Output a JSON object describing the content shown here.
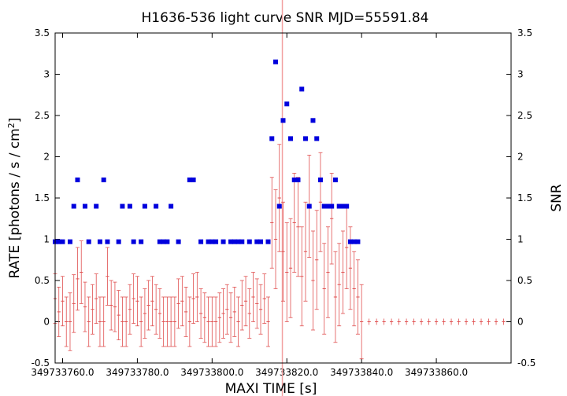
{
  "chart_data": {
    "type": "scatter",
    "title": "H1636-536 light curve  SNR MJD=55591.84",
    "xlabel": "MAXI TIME [s]",
    "ylabel": "RATE [photons / s / cm",
    "ylabel_sup": "2",
    "ylabel_close": "]",
    "y2label": "SNR",
    "xlim": [
      349733758.0,
      349733880.0
    ],
    "ylim": [
      -0.5,
      3.5
    ],
    "y2lim": [
      -0.5,
      3.5
    ],
    "x_ticks": [
      349733760.0,
      349733780.0,
      349733800.0,
      349733820.0,
      349733840.0,
      349733860.0
    ],
    "x_tick_labels": [
      "349733760.0",
      "349733780.0",
      "349733800.0",
      "349733820.0",
      "349733840.0",
      "349733860.0"
    ],
    "y_ticks": [
      -0.5,
      0,
      0.5,
      1,
      1.5,
      2,
      2.5,
      3,
      3.5
    ],
    "y_tick_labels": [
      "-0.5",
      "0",
      "0.5",
      "1",
      "1.5",
      "2",
      "2.5",
      "3",
      "3.5"
    ],
    "vertical_marker_x": 349733818.8,
    "colors": {
      "rate": "#e05050",
      "snr": "#0000dd",
      "marker": "#f2a0a0"
    },
    "rate": {
      "x": [
        349733758.0,
        349733759.0,
        349733760.0,
        349733761.0,
        349733762.0,
        349733763.0,
        349733764.0,
        349733765.0,
        349733766.0,
        349733767.0,
        349733768.0,
        349733769.0,
        349733770.0,
        349733771.0,
        349733772.0,
        349733773.0,
        349733774.0,
        349733775.0,
        349733776.0,
        349733777.0,
        349733778.0,
        349733779.0,
        349733780.0,
        349733781.0,
        349733782.0,
        349733783.0,
        349733784.0,
        349733785.0,
        349733786.0,
        349733787.0,
        349733788.0,
        349733789.0,
        349733790.0,
        349733791.0,
        349733792.0,
        349733793.0,
        349733794.0,
        349733795.0,
        349733796.0,
        349733797.0,
        349733798.0,
        349733799.0,
        349733800.0,
        349733801.0,
        349733802.0,
        349733803.0,
        349733804.0,
        349733805.0,
        349733806.0,
        349733807.0,
        349733808.0,
        349733809.0,
        349733810.0,
        349733811.0,
        349733812.0,
        349733813.0,
        349733814.0,
        349733815.0,
        349733816.0,
        349733817.0,
        349733818.0,
        349733819.0,
        349733820.0,
        349733821.0,
        349733822.0,
        349733823.0,
        349733824.0,
        349733825.0,
        349733826.0,
        349733827.0,
        349733828.0,
        349733829.0,
        349733830.0,
        349733831.0,
        349733832.0,
        349733833.0,
        349733834.0,
        349733835.0,
        349733836.0,
        349733837.0,
        349733838.0,
        349733839.0,
        349733840.0,
        349733842.0,
        349733844.0,
        349733846.0,
        349733848.0,
        349733850.0,
        349733852.0,
        349733854.0,
        349733856.0,
        349733858.0,
        349733860.0,
        349733862.0,
        349733864.0,
        349733866.0,
        349733868.0,
        349733870.0,
        349733872.0,
        349733874.0,
        349733876.0,
        349733878.0
      ],
      "y": [
        0.28,
        0.12,
        0.25,
        0.0,
        0.0,
        0.22,
        0.52,
        0.6,
        0.18,
        0.0,
        0.15,
        0.28,
        0.0,
        0.0,
        0.55,
        0.2,
        0.18,
        0.08,
        0.0,
        0.0,
        0.15,
        0.28,
        0.25,
        0.0,
        0.1,
        0.2,
        0.25,
        0.15,
        0.1,
        0.0,
        0.0,
        0.0,
        0.0,
        0.22,
        0.25,
        0.12,
        0.0,
        0.28,
        0.3,
        0.1,
        0.05,
        0.0,
        0.0,
        0.0,
        0.05,
        0.1,
        0.15,
        0.05,
        0.12,
        0.0,
        0.2,
        0.25,
        0.1,
        0.3,
        0.22,
        0.15,
        0.28,
        0.0,
        1.2,
        1.0,
        1.5,
        0.85,
        0.6,
        0.65,
        1.2,
        1.15,
        0.55,
        0.85,
        1.4,
        0.5,
        0.75,
        1.45,
        0.4,
        0.6,
        1.25,
        0.3,
        0.45,
        0.6,
        0.9,
        0.65,
        0.4,
        0.3,
        0.0,
        0.0,
        0.0,
        0.0,
        0.0,
        0.0,
        0.0,
        0.0,
        0.0,
        0.0,
        0.0,
        0.0,
        0.0,
        0.0,
        0.0,
        0.0,
        0.0,
        0.0,
        0.0,
        0.0
      ],
      "err": [
        0.3,
        0.3,
        0.3,
        0.3,
        0.35,
        0.35,
        0.38,
        0.38,
        0.3,
        0.3,
        0.3,
        0.3,
        0.3,
        0.3,
        0.35,
        0.3,
        0.3,
        0.3,
        0.3,
        0.3,
        0.3,
        0.3,
        0.3,
        0.3,
        0.3,
        0.3,
        0.3,
        0.3,
        0.3,
        0.3,
        0.3,
        0.3,
        0.3,
        0.3,
        0.3,
        0.3,
        0.3,
        0.3,
        0.3,
        0.3,
        0.3,
        0.3,
        0.3,
        0.3,
        0.3,
        0.3,
        0.3,
        0.3,
        0.3,
        0.3,
        0.3,
        0.3,
        0.3,
        0.3,
        0.3,
        0.3,
        0.3,
        0.3,
        0.55,
        0.6,
        0.65,
        0.6,
        0.6,
        0.6,
        0.6,
        0.6,
        0.6,
        0.6,
        0.62,
        0.6,
        0.6,
        0.6,
        0.55,
        0.55,
        0.55,
        0.55,
        0.5,
        0.5,
        0.5,
        0.5,
        0.45,
        0.45,
        0.45,
        0.0,
        0.0,
        0.0,
        0.0,
        0.0,
        0.0,
        0.0,
        0.0,
        0.0,
        0.0,
        0.0,
        0.0,
        0.0,
        0.0,
        0.0,
        0.0,
        0.0,
        0.0,
        0.0
      ]
    },
    "snr": {
      "x": [
        349733758.0,
        349733759.0,
        349733760.0,
        349733762.0,
        349733763.0,
        349733764.0,
        349733766.0,
        349733767.0,
        349733769.0,
        349733770.0,
        349733771.0,
        349733772.0,
        349733775.0,
        349733776.0,
        349733778.0,
        349733779.0,
        349733781.0,
        349733782.0,
        349733785.0,
        349733786.0,
        349733787.0,
        349733788.0,
        349733789.0,
        349733791.0,
        349733794.0,
        349733795.0,
        349733797.0,
        349733799.0,
        349733800.0,
        349733801.0,
        349733803.0,
        349733805.0,
        349733806.0,
        349733807.0,
        349733808.0,
        349733810.0,
        349733812.0,
        349733813.0,
        349733815.0,
        349733816.0,
        349733817.0,
        349733818.0,
        349733819.0,
        349733820.0,
        349733821.0,
        349733822.0,
        349733823.0,
        349733824.0,
        349733825.0,
        349733826.0,
        349733827.0,
        349733828.0,
        349733829.0,
        349733830.0,
        349733831.0,
        349733832.0,
        349733833.0,
        349733834.0,
        349733835.0,
        349733836.0,
        349733837.0,
        349733838.0,
        349733839.0
      ],
      "y": [
        0.97,
        0.97,
        0.97,
        0.97,
        1.4,
        1.72,
        1.4,
        0.97,
        1.4,
        0.97,
        1.72,
        0.97,
        0.97,
        1.4,
        1.4,
        0.97,
        0.97,
        1.4,
        1.4,
        0.97,
        0.97,
        0.97,
        1.4,
        0.97,
        1.72,
        1.72,
        0.97,
        0.97,
        0.97,
        0.97,
        0.97,
        0.97,
        0.97,
        0.97,
        0.97,
        0.97,
        0.97,
        0.97,
        0.97,
        2.22,
        3.15,
        1.4,
        2.44,
        2.64,
        2.22,
        1.72,
        1.72,
        2.82,
        2.22,
        1.4,
        2.44,
        2.22,
        1.72,
        1.4,
        1.4,
        1.4,
        1.72,
        1.4,
        1.4,
        1.4,
        0.97,
        0.97,
        0.97
      ]
    }
  }
}
